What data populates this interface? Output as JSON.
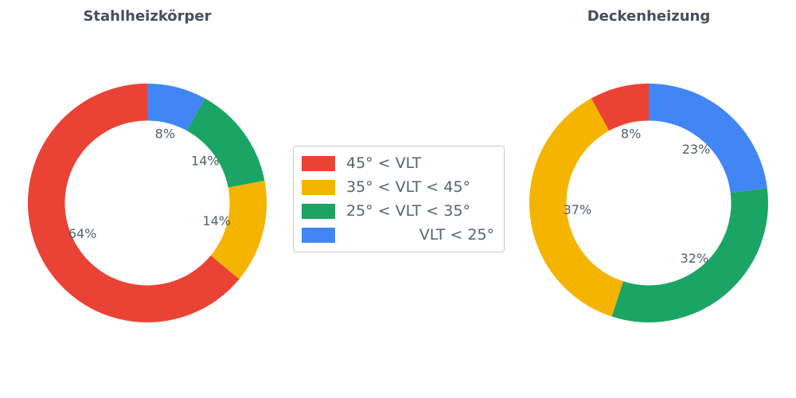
{
  "colors": {
    "red": "#EA4335",
    "yellow": "#F4B400",
    "green": "#1AA564",
    "blue": "#4285F4",
    "title_text": "#454F5F",
    "label_text": "#555E6B",
    "legend_border": "#CBCBCB",
    "background": "#FFFFFF"
  },
  "legend": {
    "position": "center-between-charts",
    "items": [
      {
        "label": "45° < VLT",
        "color": "#EA4335"
      },
      {
        "label": "35° < VLT < 45°",
        "color": "#F4B400"
      },
      {
        "label": "25° < VLT < 35°",
        "color": "#1AA564"
      },
      {
        "label": "VLT < 25°",
        "color": "#4285F4"
      }
    ]
  },
  "chart_data": [
    {
      "type": "pie",
      "subtype": "donut",
      "title": "Stahlheizkörper",
      "labels": [
        "45° < VLT",
        "35° < VLT < 45°",
        "25° < VLT < 35°",
        "VLT < 25°"
      ],
      "values": [
        64,
        14,
        14,
        8
      ],
      "unit": "%",
      "data_labels": [
        "64%",
        "14%",
        "14%",
        "8%"
      ],
      "colors": [
        "#EA4335",
        "#F4B400",
        "#1AA564",
        "#4285F4"
      ],
      "start_angle_deg": 90,
      "direction": "counterclockwise",
      "inner_radius_ratio": 0.69,
      "label_distance_ratio": 0.6
    },
    {
      "type": "pie",
      "subtype": "donut",
      "title": "Deckenheizung",
      "labels": [
        "45° < VLT",
        "35° < VLT < 45°",
        "25° < VLT < 35°",
        "VLT < 25°"
      ],
      "values": [
        8,
        37,
        32,
        23
      ],
      "unit": "%",
      "data_labels": [
        "8%",
        "37%",
        "32%",
        "23%"
      ],
      "colors": [
        "#EA4335",
        "#F4B400",
        "#1AA564",
        "#4285F4"
      ],
      "start_angle_deg": 90,
      "direction": "counterclockwise",
      "inner_radius_ratio": 0.69,
      "label_distance_ratio": 0.6
    }
  ]
}
